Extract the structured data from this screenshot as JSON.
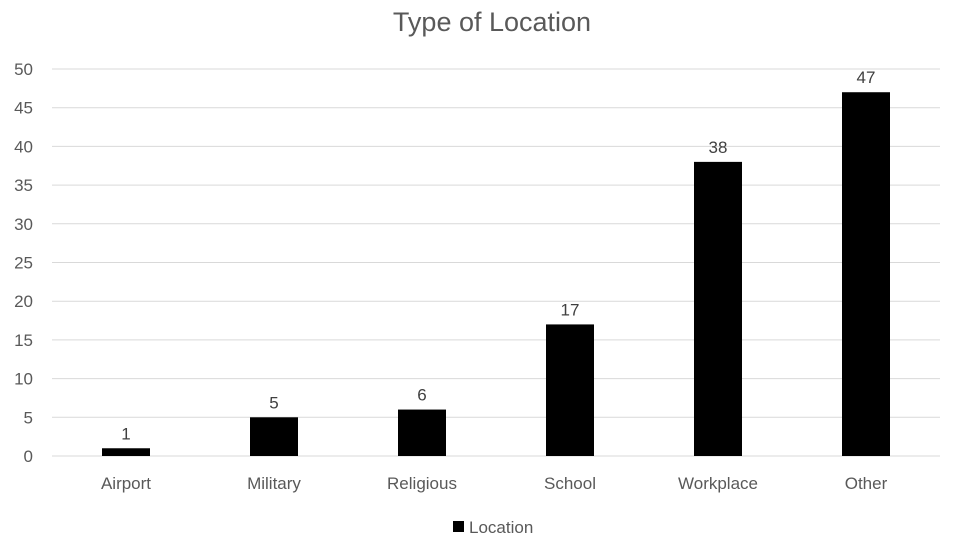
{
  "chart_data": {
    "type": "bar",
    "title": "Type of Location",
    "xlabel": "",
    "ylabel": "",
    "categories": [
      "Airport",
      "Military",
      "Religious",
      "School",
      "Workplace",
      "Other"
    ],
    "series": [
      {
        "name": "Location",
        "values": [
          1,
          5,
          6,
          17,
          38,
          47
        ],
        "color": "#000000"
      }
    ],
    "ylim": [
      0,
      50
    ],
    "yticks": [
      0,
      5,
      10,
      15,
      20,
      25,
      30,
      35,
      40,
      45,
      50
    ],
    "data_labels": true,
    "grid": true,
    "legend": "bottom",
    "colors": {
      "bar": "#000000",
      "grid": "#d9d9d9",
      "text": "#595959"
    }
  }
}
